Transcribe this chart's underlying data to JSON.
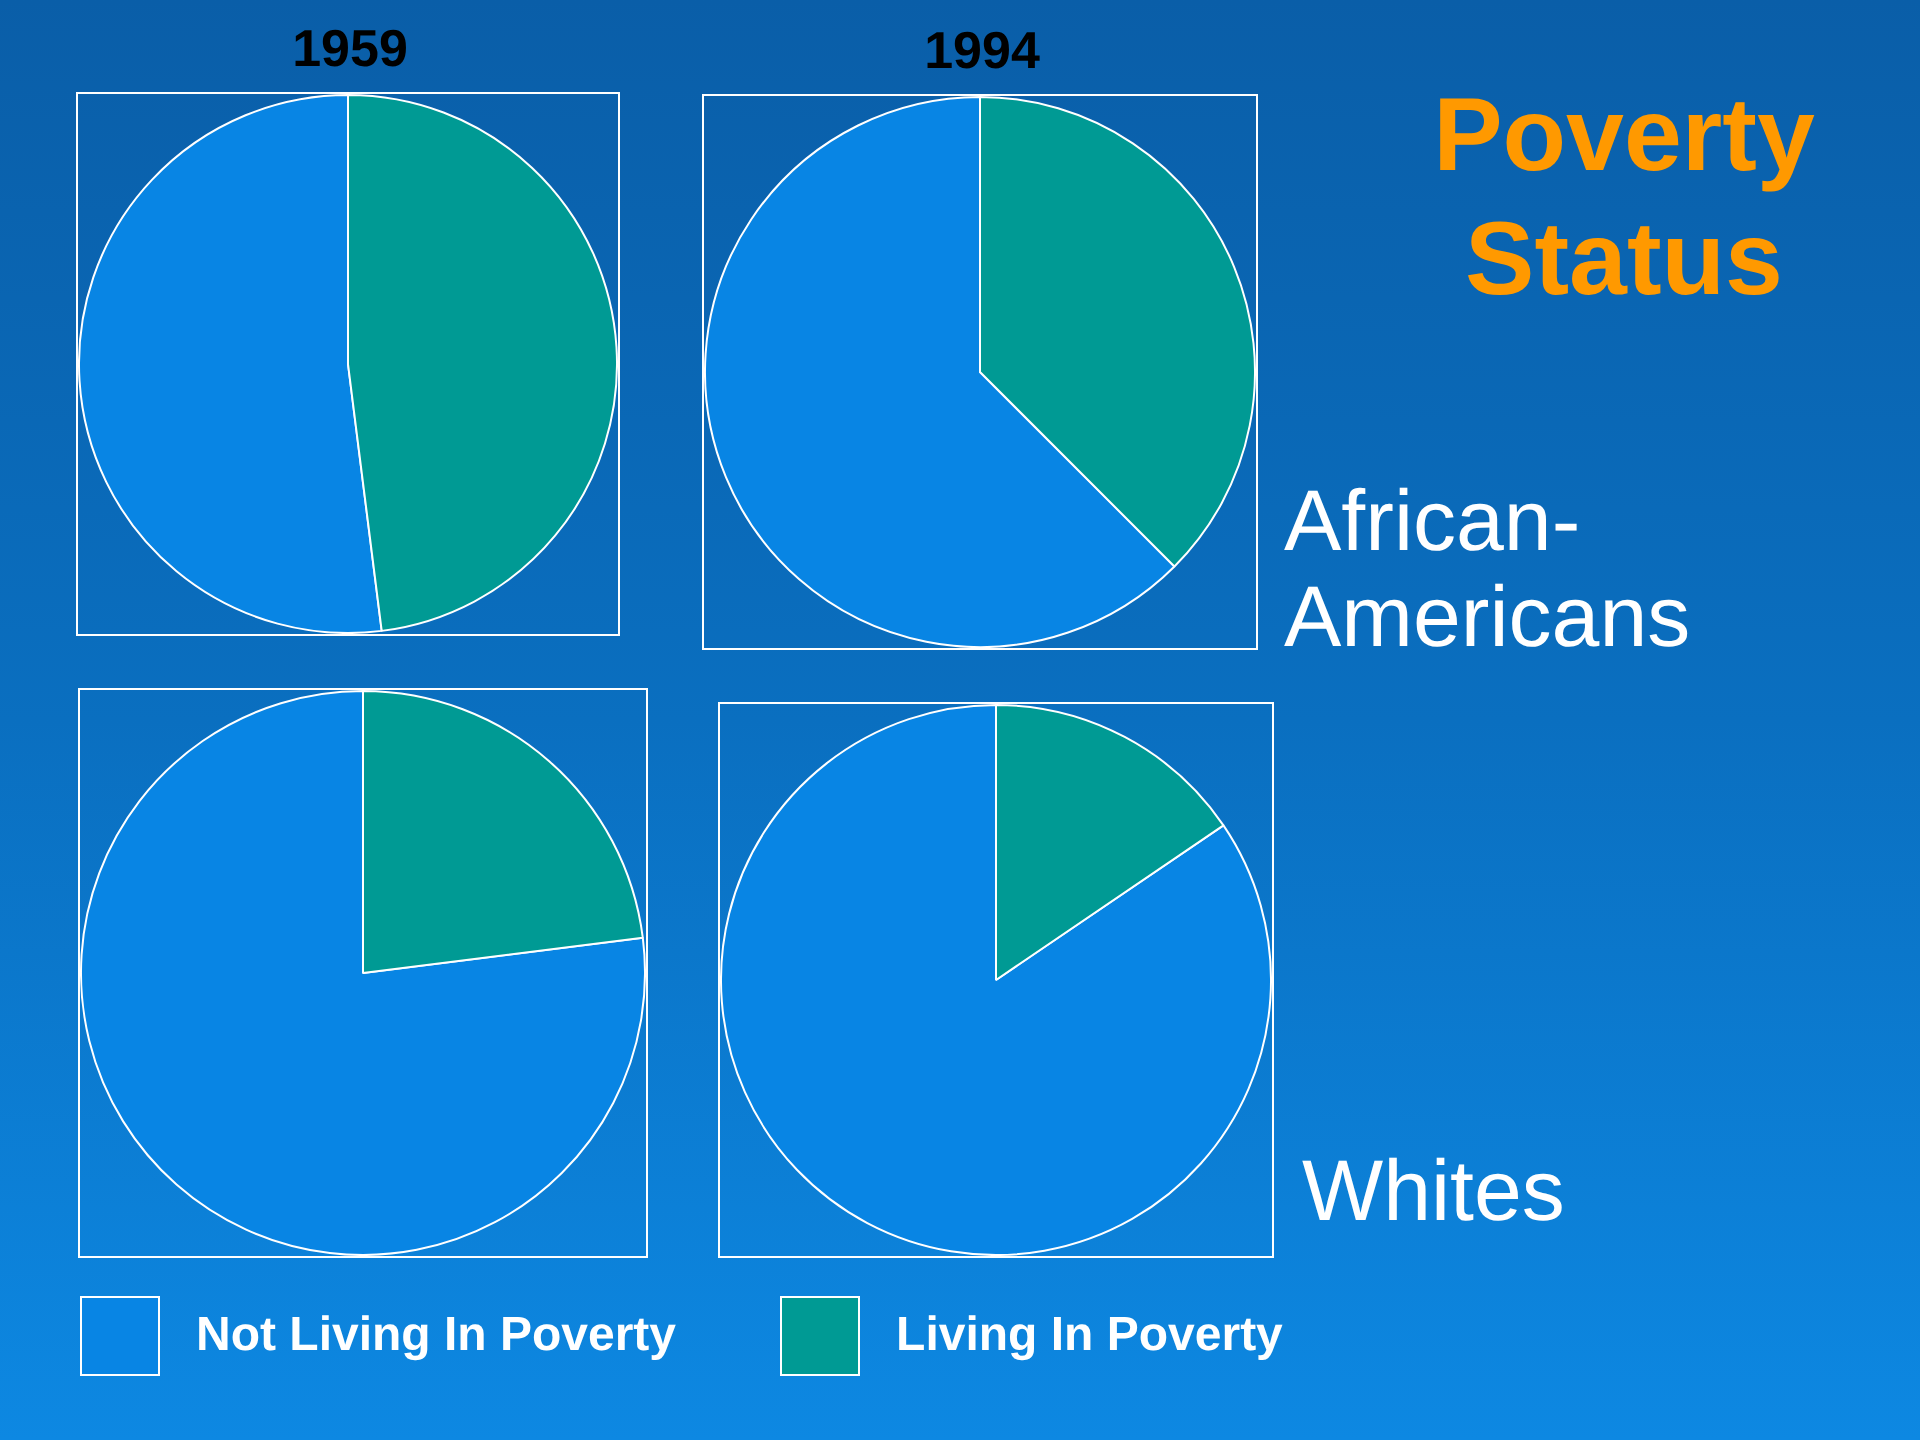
{
  "chart_data": [
    {
      "type": "pie",
      "title": "1959",
      "categories": [
        null,
        null
      ],
      "values": [
        52,
        48
      ],
      "colors": [
        "#0885e4",
        "#009a94"
      ]
    },
    {
      "type": "pie",
      "title": "1994",
      "categories": [
        null,
        null
      ],
      "values": [
        62.5,
        37.5
      ],
      "colors": [
        "#0885e4",
        "#009a94"
      ],
      "annotations": [
        "African-Americans"
      ]
    },
    {
      "type": "other",
      "title": "Poverty Status"
    },
    {
      "type": "pie",
      "categories": [
        "Not Living In Poverty",
        "Living In Poverty"
      ],
      "values": [
        77,
        23
      ],
      "colors": [
        "#0885e4",
        "#009a94"
      ],
      "legend": "bottom"
    },
    {
      "type": "pie",
      "categories": [
        null,
        null
      ],
      "values": [
        84.5,
        15.5
      ],
      "colors": [
        "#0885e4",
        "#009a94"
      ],
      "annotations": [
        "Whites"
      ]
    }
  ]
}
